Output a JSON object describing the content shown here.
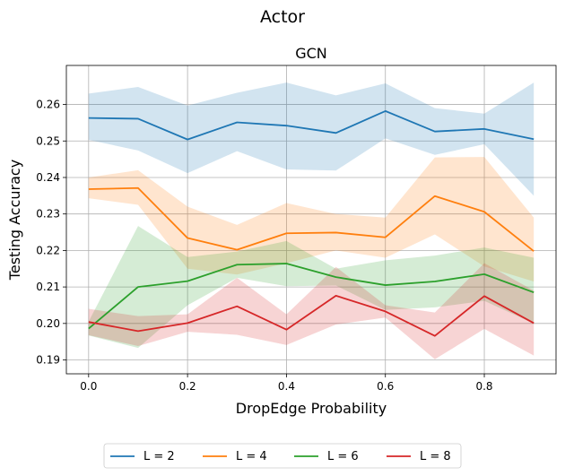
{
  "chart_data": {
    "type": "line",
    "suptitle": "Actor",
    "title": "GCN",
    "xlabel": "DropEdge Probability",
    "ylabel": "Testing Accuracy",
    "xlim": [
      -0.045,
      0.945
    ],
    "ylim": [
      0.1862,
      0.2707
    ],
    "xticks": [
      0.0,
      0.2,
      0.4,
      0.6,
      0.8
    ],
    "xtick_labels": [
      "0.0",
      "0.2",
      "0.4",
      "0.6",
      "0.8"
    ],
    "yticks": [
      0.19,
      0.2,
      0.21,
      0.22,
      0.23,
      0.24,
      0.25,
      0.26
    ],
    "ytick_labels": [
      "0.19",
      "0.20",
      "0.21",
      "0.22",
      "0.23",
      "0.24",
      "0.25",
      "0.26"
    ],
    "grid": true,
    "legend_position": "bottom-center",
    "x": [
      0.0,
      0.1,
      0.2,
      0.3,
      0.4,
      0.5,
      0.6,
      0.7,
      0.8,
      0.9
    ],
    "series": [
      {
        "name": "L = 2",
        "color": "#1f77b4",
        "values": [
          0.2563,
          0.2561,
          0.2504,
          0.2551,
          0.2542,
          0.2522,
          0.2582,
          0.2526,
          0.2533,
          0.2505
        ],
        "upper": [
          0.263,
          0.2648,
          0.2597,
          0.2632,
          0.266,
          0.2625,
          0.2658,
          0.259,
          0.2575,
          0.266
        ],
        "lower": [
          0.2503,
          0.2474,
          0.2412,
          0.2472,
          0.2422,
          0.2419,
          0.2507,
          0.2462,
          0.2491,
          0.235
        ]
      },
      {
        "name": "L = 4",
        "color": "#ff7f0e",
        "values": [
          0.2368,
          0.2371,
          0.2234,
          0.2202,
          0.2247,
          0.2249,
          0.2236,
          0.2349,
          0.2306,
          0.2198
        ],
        "upper": [
          0.24,
          0.242,
          0.232,
          0.227,
          0.233,
          0.23,
          0.229,
          0.2455,
          0.2456,
          0.229
        ],
        "lower": [
          0.2343,
          0.2325,
          0.215,
          0.2134,
          0.2165,
          0.22,
          0.218,
          0.2244,
          0.2156,
          0.2115
        ]
      },
      {
        "name": "L = 6",
        "color": "#2ca02c",
        "values": [
          0.1986,
          0.21,
          0.2116,
          0.2161,
          0.2164,
          0.2127,
          0.2105,
          0.2115,
          0.2135,
          0.2085
        ],
        "upper": [
          0.2005,
          0.2267,
          0.2182,
          0.2197,
          0.2226,
          0.215,
          0.2173,
          0.2186,
          0.2208,
          0.218
        ],
        "lower": [
          0.1967,
          0.1933,
          0.205,
          0.2125,
          0.2102,
          0.2104,
          0.2037,
          0.2044,
          0.2062,
          0.2
        ]
      },
      {
        "name": "L = 8",
        "color": "#d62728",
        "values": [
          0.2004,
          0.1979,
          0.2001,
          0.2047,
          0.1983,
          0.2076,
          0.2033,
          0.1966,
          0.2075,
          0.2001
        ],
        "upper": [
          0.204,
          0.202,
          0.2025,
          0.2125,
          0.2025,
          0.2155,
          0.205,
          0.203,
          0.2165,
          0.209
        ],
        "lower": [
          0.1968,
          0.1938,
          0.1977,
          0.1969,
          0.1941,
          0.1997,
          0.2016,
          0.1902,
          0.1985,
          0.1912
        ]
      }
    ]
  }
}
